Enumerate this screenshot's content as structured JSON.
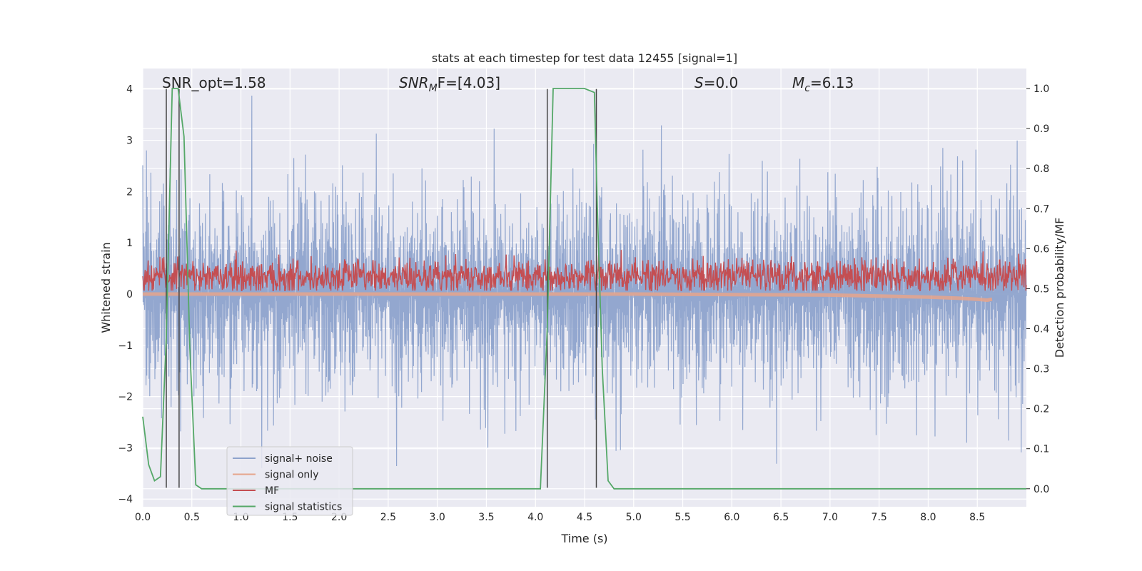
{
  "chart_data": {
    "type": "line",
    "title": "stats at each timestep for test data 12455 [signal=1]",
    "xlabel": "Time (s)",
    "ylabel": "Whitened strain",
    "y2label": "Detection probability/MF",
    "xlim": [
      0.0,
      9.0
    ],
    "ylim": [
      -4.15,
      4.4
    ],
    "y2lim": [
      -0.045,
      1.05
    ],
    "xticks": [
      0.0,
      0.5,
      1.0,
      1.5,
      2.0,
      2.5,
      3.0,
      3.5,
      4.0,
      4.5,
      5.0,
      5.5,
      6.0,
      6.5,
      7.0,
      7.5,
      8.0,
      8.5
    ],
    "xtick_labels": [
      "0.0",
      "0.5",
      "1.0",
      "1.5",
      "2.0",
      "2.5",
      "3.0",
      "3.5",
      "4.0",
      "4.5",
      "5.0",
      "5.5",
      "6.0",
      "6.5",
      "7.0",
      "7.5",
      "8.0",
      "8.5"
    ],
    "yticks": [
      -4,
      -3,
      -2,
      -1,
      0,
      1,
      2,
      3,
      4
    ],
    "ytick_labels": [
      "−4",
      "−3",
      "−2",
      "−1",
      "0",
      "1",
      "2",
      "3",
      "4"
    ],
    "y2ticks": [
      0.0,
      0.1,
      0.2,
      0.3,
      0.4,
      0.5,
      0.6,
      0.7,
      0.8,
      0.9,
      1.0
    ],
    "y2tick_labels": [
      "0.0",
      "0.1",
      "0.2",
      "0.3",
      "0.4",
      "0.5",
      "0.6",
      "0.7",
      "0.8",
      "0.9",
      "1.0"
    ],
    "grid": true,
    "legend": {
      "placement": "lower-left",
      "entries": [
        {
          "name": "signal+ noise",
          "color": "#8ea3cc"
        },
        {
          "name": "signal only",
          "color": "#e6a58c"
        },
        {
          "name": "MF",
          "color": "#c44e52"
        },
        {
          "name": "signal statistics",
          "color": "#55a868"
        }
      ]
    },
    "annotations": {
      "snr_opt": "SNR_opt=1.58",
      "snr_mf_main": "SNR",
      "snr_mf_sub": "M",
      "snr_mf_rest": "F=[4.03]",
      "s_main": "S",
      "s_rest": "=0.0",
      "mc_main": "M",
      "mc_sub": "c",
      "mc_rest": "=6.13"
    },
    "series": [
      {
        "name": "signal+ noise",
        "axis": "left",
        "color": "#8ea3cc",
        "kind": "noise",
        "x_range": [
          0.0,
          9.0
        ],
        "typical_amplitude": 1.5,
        "peak_max": 4.0,
        "peak_min": -3.6
      },
      {
        "name": "signal only",
        "axis": "left",
        "color": "#e6a58c",
        "x": [
          0.0,
          4.0,
          5.0,
          6.0,
          7.0,
          7.5,
          8.0,
          8.3,
          8.5,
          8.6,
          8.65
        ],
        "y": [
          0.0,
          0.0,
          0.0,
          -0.01,
          -0.02,
          -0.04,
          -0.06,
          -0.08,
          -0.1,
          -0.12,
          -0.1
        ]
      },
      {
        "name": "MF",
        "axis": "right",
        "color": "#c44e52",
        "kind": "noise",
        "x_range": [
          0.0,
          9.0
        ],
        "base": 0.53,
        "min": 0.495,
        "max": 0.6
      },
      {
        "name": "signal statistics",
        "axis": "right",
        "color": "#55a868",
        "x": [
          0.0,
          0.06,
          0.12,
          0.18,
          0.24,
          0.3,
          0.36,
          0.42,
          0.48,
          0.54,
          0.6,
          4.05,
          4.12,
          4.18,
          4.25,
          4.5,
          4.6,
          4.63,
          4.68,
          4.74,
          4.8,
          9.0
        ],
        "y": [
          0.18,
          0.06,
          0.02,
          0.03,
          0.38,
          1.0,
          1.0,
          0.88,
          0.35,
          0.01,
          0.0,
          0.0,
          0.4,
          1.0,
          1.0,
          1.0,
          0.99,
          0.7,
          0.3,
          0.02,
          0.0,
          0.0
        ]
      }
    ],
    "vertical_lines": {
      "color": "#444444",
      "x": [
        0.24,
        0.37,
        4.12,
        4.62
      ],
      "y_range": [
        -3.78,
        4.0
      ]
    }
  }
}
